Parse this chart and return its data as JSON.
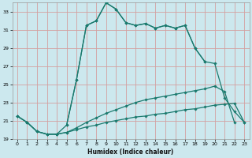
{
  "xlabel": "Humidex (Indice chaleur)",
  "bg_color": "#cce8ee",
  "grid_color": "#d4a0a0",
  "line_color": "#1a7a6e",
  "xlim": [
    -0.5,
    23.5
  ],
  "ylim": [
    19,
    34
  ],
  "yticks": [
    19,
    21,
    23,
    25,
    27,
    29,
    31,
    33
  ],
  "xticks": [
    0,
    1,
    2,
    3,
    4,
    5,
    6,
    7,
    8,
    9,
    10,
    11,
    12,
    13,
    14,
    15,
    16,
    17,
    18,
    19,
    20,
    21,
    22,
    23
  ],
  "curve1_x": [
    0,
    1,
    2,
    3,
    4,
    5,
    6,
    7,
    8,
    9,
    10,
    11,
    12,
    13,
    14,
    15,
    16,
    17,
    18,
    19,
    20,
    21,
    22,
    23
  ],
  "curve1_y": [
    21.5,
    20.8,
    19.8,
    19.5,
    19.5,
    19.7,
    20.0,
    20.3,
    20.5,
    20.8,
    21.0,
    21.2,
    21.4,
    21.5,
    21.7,
    21.8,
    22.0,
    22.2,
    22.3,
    22.5,
    22.7,
    22.8,
    22.9,
    20.8
  ],
  "curve2_x": [
    0,
    1,
    2,
    3,
    4,
    5,
    6,
    7,
    8,
    9,
    10,
    11,
    12,
    13,
    14,
    15,
    16,
    17,
    18,
    19,
    20,
    21,
    22
  ],
  "curve2_y": [
    21.5,
    20.8,
    19.8,
    19.5,
    19.5,
    19.7,
    20.2,
    20.8,
    21.3,
    21.8,
    22.2,
    22.6,
    23.0,
    23.3,
    23.5,
    23.7,
    23.9,
    24.1,
    24.3,
    24.5,
    24.8,
    24.2,
    20.8
  ],
  "curve3_x": [
    0,
    1,
    2,
    3,
    4,
    5,
    6,
    7,
    8,
    9,
    10,
    11,
    12,
    13,
    14,
    15,
    16,
    17,
    18,
    19
  ],
  "curve3_y": [
    21.5,
    20.8,
    19.8,
    19.5,
    19.5,
    20.5,
    25.5,
    31.5,
    32.0,
    34.0,
    33.3,
    31.8,
    31.5,
    31.7,
    31.2,
    31.5,
    31.2,
    31.5,
    29.0,
    27.5
  ],
  "curve4_x": [
    5,
    6,
    7,
    8,
    9,
    10,
    11,
    12,
    13,
    14,
    15,
    16,
    17,
    18,
    19,
    20,
    21,
    22,
    23
  ],
  "curve4_y": [
    20.5,
    25.5,
    31.5,
    32.0,
    34.0,
    33.3,
    31.8,
    31.5,
    31.7,
    31.2,
    31.5,
    31.2,
    31.5,
    29.0,
    27.5,
    27.3,
    23.5,
    22.0,
    20.8
  ]
}
